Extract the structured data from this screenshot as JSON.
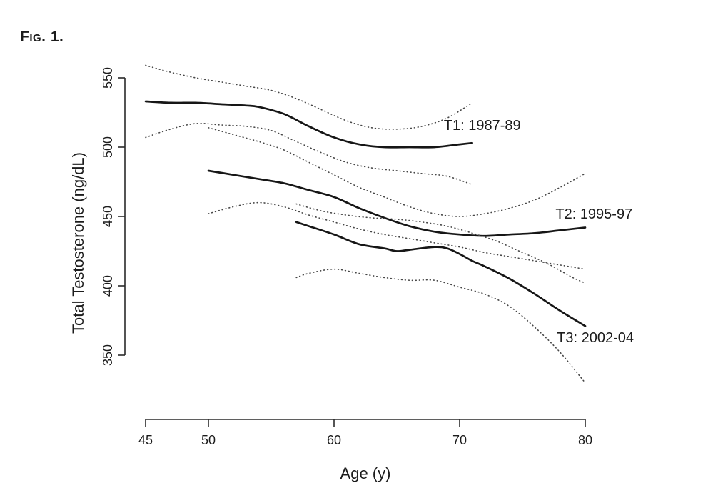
{
  "figure": {
    "label": "Fig. 1."
  },
  "chart_data": {
    "type": "line",
    "title": "",
    "xlabel": "Age (y)",
    "ylabel": "Total Testosterone (ng/dL)",
    "x_range": [
      45,
      80
    ],
    "y_range": [
      350,
      550
    ],
    "x_ticks": [
      45,
      50,
      60,
      70,
      80
    ],
    "y_ticks": [
      350,
      400,
      450,
      500,
      550
    ],
    "grid": false,
    "legend_position": "inline-annotations",
    "line_color": "#161616",
    "ci_color": "#474747",
    "series": [
      {
        "name": "T1",
        "label": "T1: 1987-89",
        "line_style": "solid",
        "ci_style": "dotted",
        "label_anchor": {
          "x": 71.8,
          "y": 516
        },
        "center": [
          [
            45,
            533
          ],
          [
            47,
            532
          ],
          [
            49,
            532
          ],
          [
            51,
            531
          ],
          [
            53,
            530
          ],
          [
            54,
            529
          ],
          [
            56,
            524
          ],
          [
            58,
            515
          ],
          [
            60,
            507
          ],
          [
            62,
            502
          ],
          [
            64,
            500
          ],
          [
            66,
            500
          ],
          [
            68,
            500
          ],
          [
            70,
            502
          ],
          [
            71,
            503
          ]
        ],
        "upper_ci": [
          [
            45,
            559
          ],
          [
            47,
            554
          ],
          [
            49,
            550
          ],
          [
            51,
            547
          ],
          [
            53,
            544
          ],
          [
            55,
            541
          ],
          [
            57,
            535
          ],
          [
            59,
            527
          ],
          [
            61,
            519
          ],
          [
            63,
            514
          ],
          [
            65,
            513
          ],
          [
            67,
            515
          ],
          [
            69,
            521
          ],
          [
            71,
            532
          ]
        ],
        "lower_ci": [
          [
            45,
            507
          ],
          [
            47,
            513
          ],
          [
            49,
            517
          ],
          [
            51,
            516
          ],
          [
            53,
            515
          ],
          [
            55,
            512
          ],
          [
            57,
            504
          ],
          [
            59,
            496
          ],
          [
            61,
            489
          ],
          [
            63,
            485
          ],
          [
            65,
            483
          ],
          [
            67,
            481
          ],
          [
            69,
            479
          ],
          [
            71,
            473
          ]
        ]
      },
      {
        "name": "T2",
        "label": "T2: 1995-97",
        "line_style": "solid",
        "ci_style": "dotted",
        "label_anchor": {
          "x": 80.7,
          "y": 452
        },
        "center": [
          [
            50,
            483
          ],
          [
            52,
            480
          ],
          [
            54,
            477
          ],
          [
            56,
            474
          ],
          [
            58,
            469
          ],
          [
            60,
            464
          ],
          [
            62,
            456
          ],
          [
            64,
            449
          ],
          [
            66,
            443
          ],
          [
            68,
            439
          ],
          [
            70,
            437
          ],
          [
            72,
            436
          ],
          [
            74,
            437
          ],
          [
            76,
            438
          ],
          [
            78,
            440
          ],
          [
            80,
            442
          ]
        ],
        "upper_ci": [
          [
            50,
            514
          ],
          [
            52,
            509
          ],
          [
            54,
            504
          ],
          [
            56,
            498
          ],
          [
            58,
            489
          ],
          [
            60,
            480
          ],
          [
            62,
            471
          ],
          [
            64,
            464
          ],
          [
            66,
            457
          ],
          [
            68,
            452
          ],
          [
            70,
            450
          ],
          [
            72,
            452
          ],
          [
            74,
            456
          ],
          [
            76,
            462
          ],
          [
            78,
            471
          ],
          [
            80,
            481
          ]
        ],
        "lower_ci": [
          [
            50,
            452
          ],
          [
            52,
            457
          ],
          [
            54,
            460
          ],
          [
            56,
            457
          ],
          [
            58,
            451
          ],
          [
            60,
            446
          ],
          [
            62,
            441
          ],
          [
            64,
            437
          ],
          [
            66,
            434
          ],
          [
            68,
            431
          ],
          [
            70,
            428
          ],
          [
            72,
            424
          ],
          [
            74,
            421
          ],
          [
            76,
            418
          ],
          [
            78,
            415
          ],
          [
            80,
            412
          ]
        ]
      },
      {
        "name": "T3",
        "label": "T3: 2002-04",
        "line_style": "solid",
        "ci_style": "dotted",
        "label_anchor": {
          "x": 80.8,
          "y": 363
        },
        "center": [
          [
            57,
            446
          ],
          [
            58,
            443
          ],
          [
            60,
            437
          ],
          [
            62,
            430
          ],
          [
            64,
            427
          ],
          [
            65,
            425
          ],
          [
            66,
            426
          ],
          [
            68,
            428
          ],
          [
            69,
            427
          ],
          [
            70,
            423
          ],
          [
            71,
            418
          ],
          [
            72,
            414
          ],
          [
            74,
            405
          ],
          [
            76,
            394
          ],
          [
            78,
            382
          ],
          [
            80,
            371
          ]
        ],
        "upper_ci": [
          [
            57,
            459
          ],
          [
            59,
            454
          ],
          [
            61,
            451
          ],
          [
            63,
            449
          ],
          [
            65,
            448
          ],
          [
            67,
            446
          ],
          [
            69,
            443
          ],
          [
            71,
            438
          ],
          [
            73,
            432
          ],
          [
            75,
            424
          ],
          [
            77,
            416
          ],
          [
            79,
            406
          ],
          [
            80,
            402
          ]
        ],
        "lower_ci": [
          [
            57,
            406
          ],
          [
            58,
            409
          ],
          [
            60,
            412
          ],
          [
            62,
            409
          ],
          [
            64,
            406
          ],
          [
            66,
            404
          ],
          [
            68,
            404
          ],
          [
            70,
            399
          ],
          [
            72,
            394
          ],
          [
            74,
            385
          ],
          [
            76,
            370
          ],
          [
            78,
            352
          ],
          [
            80,
            330
          ]
        ]
      }
    ]
  }
}
